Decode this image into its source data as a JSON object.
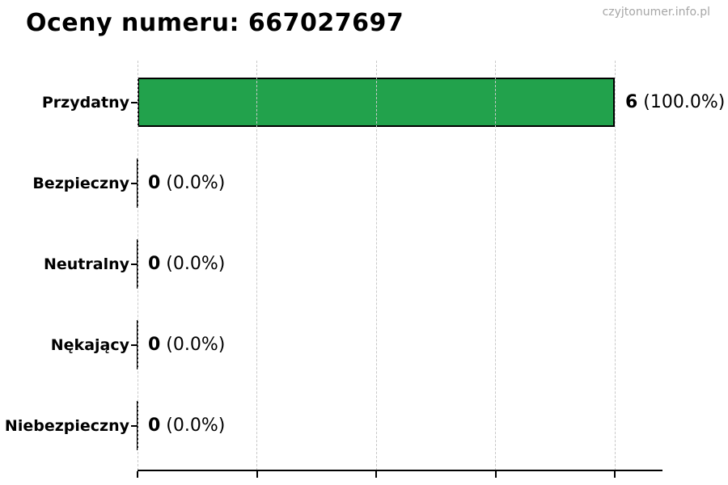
{
  "page": {
    "title": "Oceny numeru: 667027697",
    "watermark": "czyjtonumer.info.pl"
  },
  "chart_data": {
    "type": "bar",
    "orientation": "horizontal",
    "title": "Oceny numeru: 667027697",
    "categories": [
      "Przydatny",
      "Bezpieczny",
      "Neutralny",
      "Nękający",
      "Niebezpieczny"
    ],
    "values": [
      6,
      0,
      0,
      0,
      0
    ],
    "value_labels": [
      {
        "count": "6",
        "percent": "(100.0%)"
      },
      {
        "count": "0",
        "percent": "(0.0%)"
      },
      {
        "count": "0",
        "percent": "(0.0%)"
      },
      {
        "count": "0",
        "percent": "(0.0%)"
      },
      {
        "count": "0",
        "percent": "(0.0%)"
      }
    ],
    "xlim": [
      0,
      6.6
    ],
    "grid_x_values": [
      0,
      1.5,
      3,
      4.5,
      6
    ],
    "grid": true,
    "x_tick_labels_visible": false,
    "legend": false,
    "bar_color": "#22a24c",
    "bar_edge_color": "#000000",
    "gridline_color": "#c9c9c9",
    "axis_color": "#000000",
    "title_color": "#000000",
    "watermark_color": "#a6a6a6"
  }
}
